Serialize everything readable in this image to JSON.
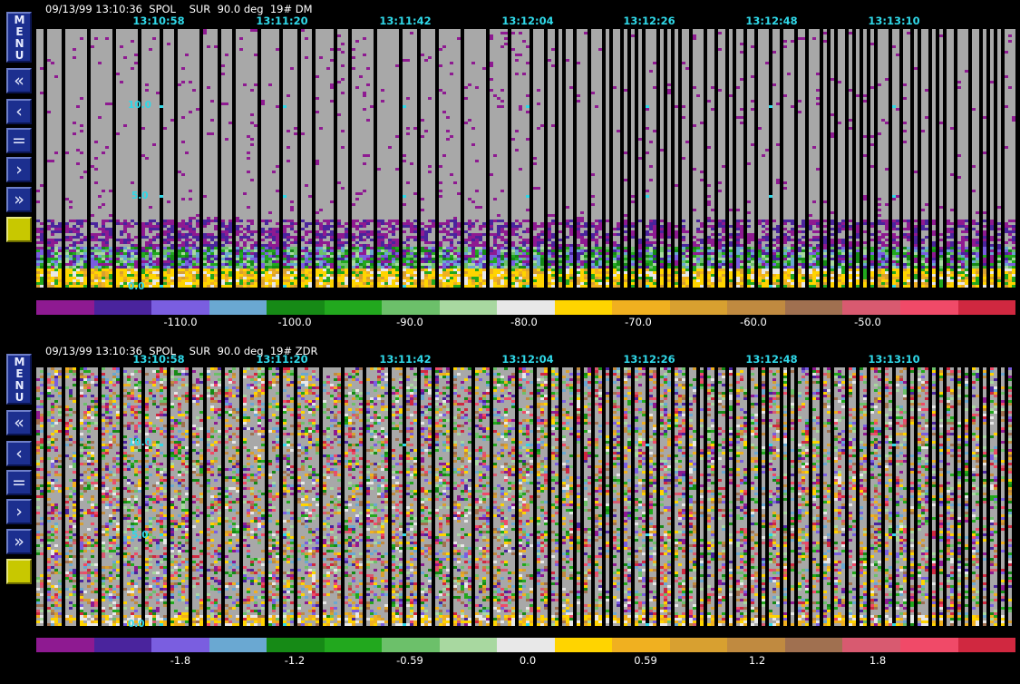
{
  "windows": [
    {
      "id": "top",
      "header": "09/13/99 13:10:36  SPOL    SUR  90.0 deg  19# DM",
      "time_labels": [
        "13:10:58",
        "13:11:20",
        "13:11:42",
        "13:12:04",
        "13:12:26",
        "13:12:48",
        "13:13:10"
      ],
      "range_labels": [
        "10.0",
        "5.0",
        "0.0"
      ],
      "colorbar_labels": [
        "-110.0",
        "-100.0",
        "-90.0",
        "-80.0",
        "-70.0",
        "-60.0",
        "-50.0"
      ],
      "field": "DM"
    },
    {
      "id": "bottom",
      "header": "09/13/99 13:10:36  SPOL    SUR  90.0 deg  19# ZDR",
      "time_labels": [
        "13:10:58",
        "13:11:20",
        "13:11:42",
        "13:12:04",
        "13:12:26",
        "13:12:48",
        "13:13:10"
      ],
      "range_labels": [
        "10.0",
        "5.0",
        "0.0"
      ],
      "colorbar_labels": [
        "-1.8",
        "-1.2",
        "-0.59",
        "0.0",
        "0.59",
        "1.2",
        "1.8"
      ],
      "field": "ZDR"
    }
  ],
  "toolbar": {
    "menu_label": "MENU",
    "buttons": [
      {
        "name": "fast-rewind-button",
        "glyph": "«"
      },
      {
        "name": "step-back-button",
        "glyph": "‹"
      },
      {
        "name": "stop-button",
        "glyph": "="
      },
      {
        "name": "step-forward-button",
        "glyph": "›"
      },
      {
        "name": "fast-forward-button",
        "glyph": "»"
      }
    ]
  },
  "colors": {
    "colorbar": [
      "#8e1a91",
      "#4a249d",
      "#7a5ee0",
      "#6aa8d2",
      "#168a16",
      "#22a81e",
      "#6cc06a",
      "#a8d8a0",
      "#e8e8e8",
      "#ffd400",
      "#f0b020",
      "#d8a030",
      "#c08a40",
      "#a07050",
      "#d85a70",
      "#f04a68",
      "#d02840"
    ],
    "background_echo": "#a8a8a8",
    "accent": "#2fd8e8",
    "toolbar": "#1c2f8f"
  }
}
